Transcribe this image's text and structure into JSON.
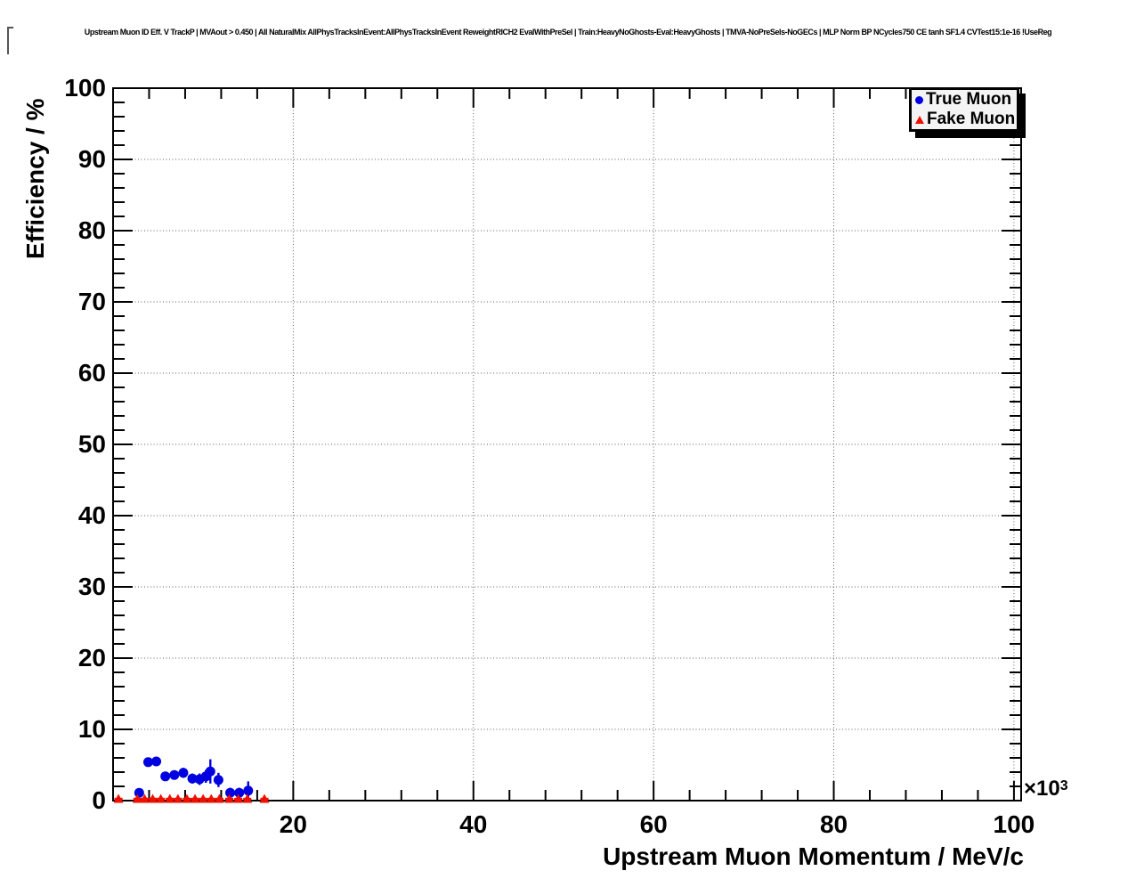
{
  "title": "Upstream Muon ID Eff. V TrackP | MVAout > 0.450 | All NaturalMix AllPhysTracksInEvent:AllPhysTracksInEvent ReweightRICH2 EvalWithPreSel | Train:HeavyNoGhosts-Eval:HeavyGhosts | TMVA-NoPreSels-NoGECs | MLP Norm BP NCycles750 CE tanh SF1.4 CVTest15:1e-16 !UseReg",
  "legend": {
    "entries": [
      {
        "label": "True Muon",
        "marker": "circle",
        "color": "#0000e0"
      },
      {
        "label": "Fake Muon",
        "marker": "triangle",
        "color": "#ee1100"
      }
    ]
  },
  "chart_data": {
    "type": "scatter",
    "title": "",
    "xlabel": "Upstream Muon Momentum / MeV/c",
    "ylabel": "Efficiency / %",
    "x_multiplier_base": "×10",
    "x_multiplier_exp": "3",
    "xlim": [
      0,
      100.8
    ],
    "ylim": [
      0,
      100
    ],
    "x_ticks": [
      20,
      40,
      60,
      80,
      100
    ],
    "y_ticks": [
      0,
      10,
      20,
      30,
      40,
      50,
      60,
      70,
      80,
      90,
      100
    ],
    "x_minor_step": 4,
    "y_minor_step": 2,
    "grid": "dotted",
    "legend_position": "top-right",
    "axis_color": "#000000",
    "grid_color": "#606060",
    "series": [
      {
        "name": "True Muon",
        "marker": "circle",
        "color": "#0000e0",
        "xerr": 0.45,
        "points": [
          {
            "x": 2.9,
            "y": 1.1,
            "ey": 0.5
          },
          {
            "x": 3.9,
            "y": 5.4,
            "ey": 0.6
          },
          {
            "x": 4.8,
            "y": 5.5,
            "ey": 0.6
          },
          {
            "x": 5.8,
            "y": 3.4,
            "ey": 0.6
          },
          {
            "x": 6.8,
            "y": 3.6,
            "ey": 0.6
          },
          {
            "x": 7.8,
            "y": 3.9,
            "ey": 0.7
          },
          {
            "x": 8.8,
            "y": 3.1,
            "ey": 0.7
          },
          {
            "x": 9.6,
            "y": 3.0,
            "ey": 0.8
          },
          {
            "x": 10.3,
            "y": 3.4,
            "ey": 0.9
          },
          {
            "x": 10.8,
            "y": 4.1,
            "ey": 1.7
          },
          {
            "x": 11.7,
            "y": 2.9,
            "ey": 1.0
          },
          {
            "x": 13.0,
            "y": 1.1,
            "ey": 0.7
          },
          {
            "x": 14.0,
            "y": 1.1,
            "ey": 0.7
          },
          {
            "x": 15.0,
            "y": 1.4,
            "ey": 1.3
          }
        ]
      },
      {
        "name": "Fake Muon",
        "marker": "triangle",
        "color": "#ee1100",
        "xerr": 0.45,
        "points": [
          {
            "x": 0.6,
            "y": 0.25,
            "ey": 0
          },
          {
            "x": 2.7,
            "y": 0.25,
            "ey": 0
          },
          {
            "x": 3.5,
            "y": 0.25,
            "ey": 0
          },
          {
            "x": 4.4,
            "y": 0.25,
            "ey": 0
          },
          {
            "x": 5.3,
            "y": 0.25,
            "ey": 0
          },
          {
            "x": 6.3,
            "y": 0.25,
            "ey": 0
          },
          {
            "x": 7.2,
            "y": 0.25,
            "ey": 0
          },
          {
            "x": 8.2,
            "y": 0.25,
            "ey": 0
          },
          {
            "x": 9.1,
            "y": 0.25,
            "ey": 0
          },
          {
            "x": 10.0,
            "y": 0.25,
            "ey": 0
          },
          {
            "x": 10.9,
            "y": 0.25,
            "ey": 0
          },
          {
            "x": 11.8,
            "y": 0.25,
            "ey": 0
          },
          {
            "x": 12.9,
            "y": 0.25,
            "ey": 0
          },
          {
            "x": 13.9,
            "y": 0.25,
            "ey": 0
          },
          {
            "x": 14.9,
            "y": 0.25,
            "ey": 0
          },
          {
            "x": 16.8,
            "y": 0.25,
            "ey": 0
          }
        ]
      }
    ]
  }
}
